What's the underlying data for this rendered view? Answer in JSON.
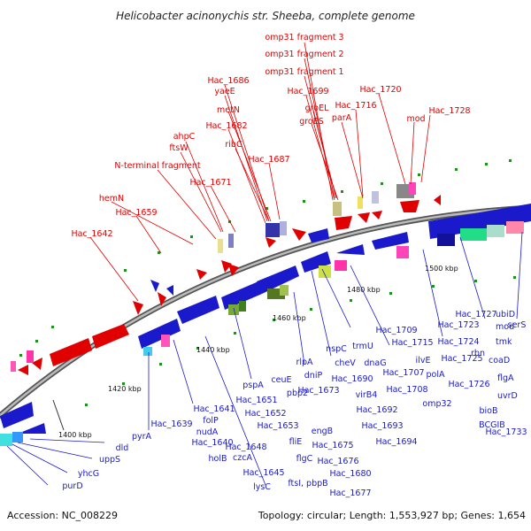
{
  "title": "Helicobacter acinonychis str. Sheeba, complete genome",
  "accession": "Accession: NC_008229",
  "summary": "Topology: circular; Length: 1,553,927 bp; Genes: 1,654",
  "kbp_labels": [
    "1400 kbp",
    "1420 kbp",
    "1440 kbp",
    "1460 kbp",
    "1480 kbp",
    "1500 kbp"
  ],
  "colors": {
    "outer_strand": "#e00000",
    "inner_strand": "#1a1acc",
    "backbone": "#999999"
  },
  "outer_genes": [
    "omp31 fragment 3",
    "omp31 fragment 2",
    "omp31 fragment 1",
    "Hac_1686",
    "yaeE",
    "Hac_1699",
    "Hac_1720",
    "metN",
    "groEL",
    "Hac_1716",
    "Hac_1728",
    "Hac_1682",
    "groES",
    "parA",
    "mod",
    "ahpC",
    "ribC",
    "ftsW",
    "Hac_1687",
    "N-terminal fragment",
    "Hac_1671",
    "hemN",
    "Hac_1659",
    "Hac_1642"
  ],
  "inner_genes": [
    "serS",
    "Hac_1727",
    "ubiD",
    "Hac_1723",
    "mod",
    "Hac_1709",
    "Hac_1724",
    "tmk",
    "Hac_1715",
    "rbn",
    "coaD",
    "nspC",
    "trmU",
    "ilvE",
    "Hac_1725",
    "cheV",
    "dnaG",
    "polA",
    "Hac_1726",
    "flgA",
    "Hac_1690",
    "Hac_1707",
    "uvrD",
    "rlpA",
    "Hac_1708",
    "bioB",
    "pspA",
    "ceuE",
    "dniP",
    "virB4",
    "omp32",
    "BCGIB",
    "Hac_1641",
    "Hac_1651",
    "pbp2",
    "Hac_1692",
    "Hac_1733",
    "folP",
    "Hac_1652",
    "Hac_1673",
    "Hac_1639",
    "nudA",
    "Hac_1653",
    "engB",
    "Hac_1693",
    "pyrA",
    "Hac_1640",
    "fliE",
    "Hac_1675",
    "Hac_1694",
    "dld",
    "Hac_1648",
    "czcA",
    "flgC",
    "Hac_1676",
    "holB",
    "ftsI, pbpB",
    "Hac_1680",
    "uppS",
    "Hac_1645",
    "yhcG",
    "lysC",
    "Hac_1677",
    "purD"
  ]
}
